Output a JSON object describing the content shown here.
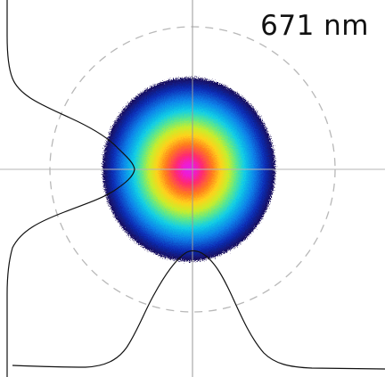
{
  "figure": {
    "wavelength_label": "671 nm"
  },
  "colors": {
    "background": "#ffffff",
    "crosshair": "#9a9a9a",
    "dashed_circle": "#b8b8b8",
    "profile_line": "#111111",
    "intensity_colormap": [
      "#1a0a55",
      "#0a2fb8",
      "#0d83ea",
      "#12cfe6",
      "#5ee88a",
      "#c8ee2c",
      "#ffd21a",
      "#ff7a1f",
      "#ff2a6e",
      "#f01ad0",
      "#e024e8"
    ]
  }
}
